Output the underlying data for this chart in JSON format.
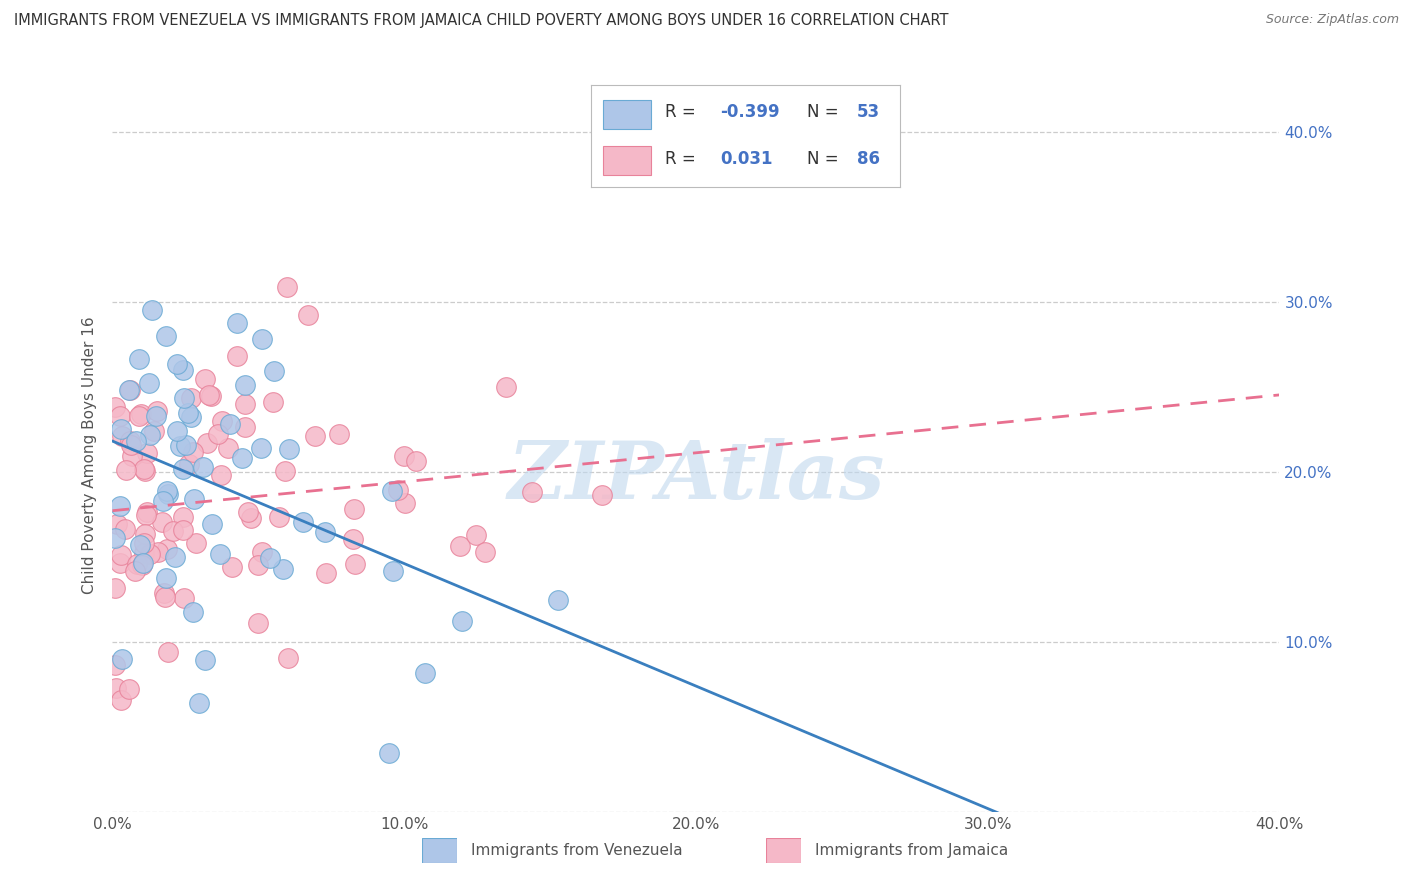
{
  "title": "IMMIGRANTS FROM VENEZUELA VS IMMIGRANTS FROM JAMAICA CHILD POVERTY AMONG BOYS UNDER 16 CORRELATION CHART",
  "source": "Source: ZipAtlas.com",
  "ylabel": "Child Poverty Among Boys Under 16",
  "xlabel_venezuela": "Immigrants from Venezuela",
  "xlabel_jamaica": "Immigrants from Jamaica",
  "watermark": "ZIPAtlas",
  "xlim": [
    0.0,
    0.4
  ],
  "ylim": [
    0.0,
    0.42
  ],
  "venezuela_R": -0.399,
  "venezuela_N": 53,
  "jamaica_R": 0.031,
  "jamaica_N": 86,
  "venezuela_color": "#aec6e8",
  "jamaica_color": "#f5b8c8",
  "venezuela_edge_color": "#6aaad4",
  "jamaica_edge_color": "#e8829a",
  "venezuela_line_color": "#3a7fbf",
  "jamaica_line_color": "#e87090",
  "background_color": "#ffffff",
  "grid_color": "#cccccc",
  "title_color": "#333333",
  "legend_R_color": "#4472c4",
  "legend_label_color": "#333333",
  "tick_color": "#555555",
  "right_tick_color": "#4472c4",
  "watermark_color": "#c0d8ee",
  "bottom_label_color": "#555555"
}
